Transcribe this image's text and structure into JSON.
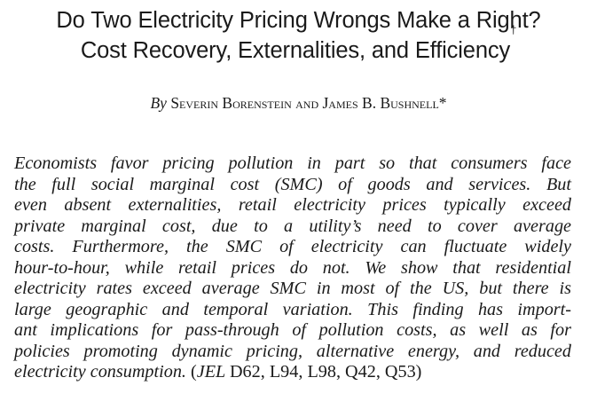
{
  "title": {
    "line1": "Do Two Electricity Pricing Wrongs Make a Right?",
    "line2": "Cost Recovery, Externalities, and Efficiency",
    "dagger": "†"
  },
  "byline": {
    "by": "By",
    "authors": "Severin Borenstein and James B. Bushnell*"
  },
  "abstract": {
    "lines": [
      "Economists favor pricing pollution in part so that consumers face",
      "the full social marginal cost (SMC) of goods and services. But",
      "even absent externalities, retail electricity prices typically exceed",
      "private marginal cost, due to a utility’s need to cover average",
      "costs. Furthermore, the SMC of electricity can fluctuate widely",
      "hour-to-hour, while retail prices do not. We show that residential",
      "electricity rates exceed average SMC in most of the US, but there is",
      "large geographic and temporal variation. This finding has import-",
      "ant implications for pass-through of pollution costs, as well as for",
      "policies promoting dynamic pricing, alternative energy, and reduced"
    ],
    "last_line_text": "electricity consumption.",
    "jel_open": "(",
    "jel_label": "JEL",
    "jel_codes": "D62, L94, L98, Q42, Q53)"
  }
}
